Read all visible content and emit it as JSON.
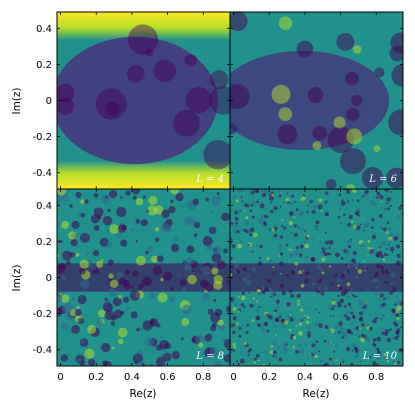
{
  "chart_data": {
    "type": "heatmap",
    "xlabel": "Re(z)",
    "ylabel": "Im(z)",
    "xlim": [
      -0.02,
      0.95
    ],
    "ylim": [
      -0.49,
      0.49
    ],
    "x_ticks": [
      0,
      0.2,
      0.4,
      0.6,
      0.8
    ],
    "x_tick_labels": [
      "0",
      "0.2",
      "0.4",
      "0.6",
      "0.8"
    ],
    "y_ticks": [
      0.4,
      0.2,
      0,
      -0.2,
      -0.4
    ],
    "y_tick_labels": [
      "0.4",
      "0.2",
      "0",
      "-0.2",
      "-0.4"
    ],
    "colormap": "viridis",
    "colors": {
      "low": "#440154",
      "mid": "#21918c",
      "high": "#fde725"
    },
    "panels": [
      {
        "label": "L = 4",
        "L": 4,
        "position": "top-left"
      },
      {
        "label": "L = 6",
        "L": 6,
        "position": "top-right"
      },
      {
        "label": "L = 8",
        "L": 8,
        "position": "bottom-left"
      },
      {
        "label": "L = 10",
        "L": 10,
        "position": "bottom-right"
      }
    ]
  }
}
